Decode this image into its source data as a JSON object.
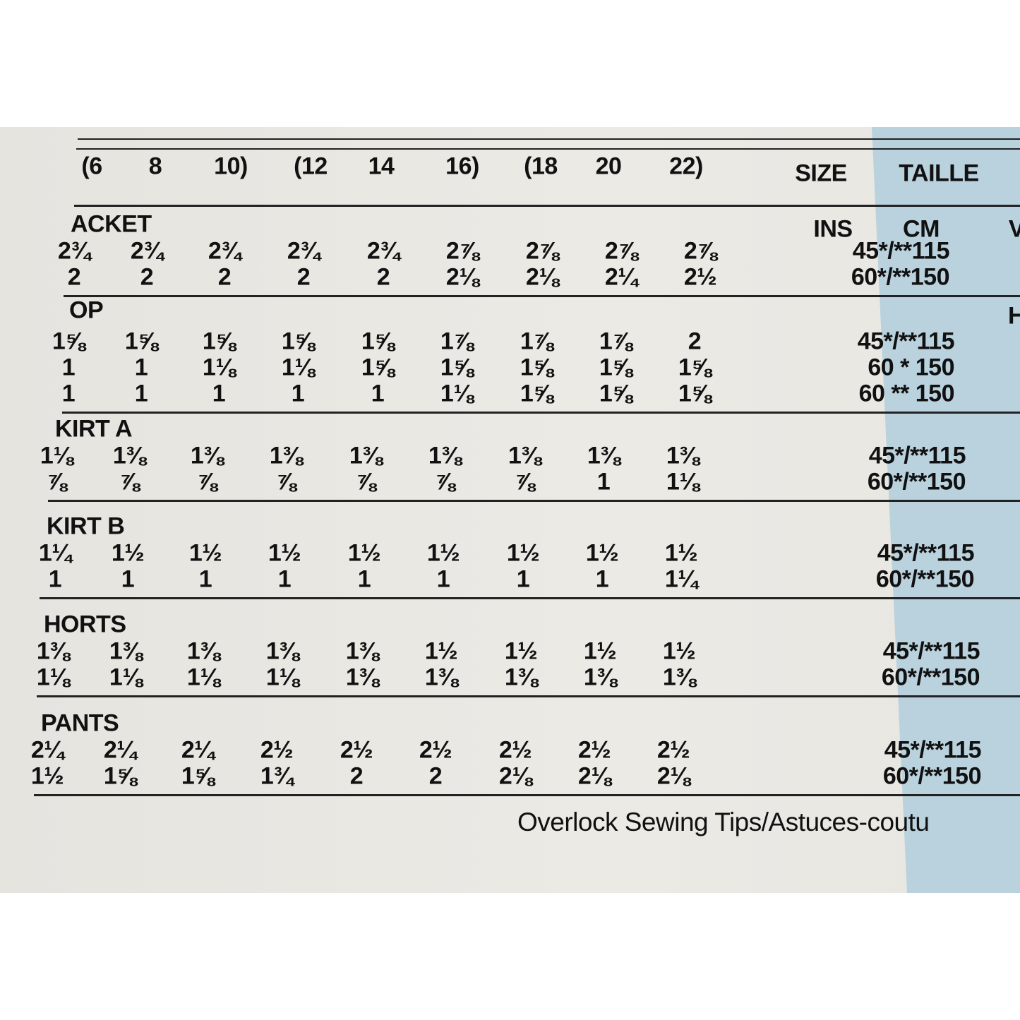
{
  "header": {
    "sizes": [
      "(6",
      "8",
      "10)",
      "(12",
      "14",
      "16)",
      "(18",
      "20",
      "22)"
    ],
    "size_label": "SIZE",
    "taille_label": "TAILLE"
  },
  "unit_labels": [
    "INS",
    "CM"
  ],
  "edge_labels": [
    "V",
    "H"
  ],
  "sections": [
    {
      "title": "ACKET",
      "rows": [
        {
          "values": [
            "2¾",
            "2¾",
            "2¾",
            "2¾",
            "2¾",
            "2⅞",
            "2⅞",
            "2⅞",
            "2⅞"
          ],
          "width": "45*/**115"
        },
        {
          "values": [
            "2",
            "2",
            "2",
            "2",
            "2",
            "2⅛",
            "2⅛",
            "2¼",
            "2½"
          ],
          "width": "60*/**150"
        }
      ]
    },
    {
      "title": "OP",
      "rows": [
        {
          "values": [
            "1⅝",
            "1⅝",
            "1⅝",
            "1⅝",
            "1⅝",
            "1⅞",
            "1⅞",
            "1⅞",
            "2"
          ],
          "width": "45*/**115"
        },
        {
          "values": [
            "1",
            "1",
            "1⅛",
            "1⅛",
            "1⅝",
            "1⅝",
            "1⅝",
            "1⅝",
            "1⅝"
          ],
          "width": "60 * 150"
        },
        {
          "values": [
            "1",
            "1",
            "1",
            "1",
            "1",
            "1⅛",
            "1⅝",
            "1⅝",
            "1⅝"
          ],
          "width": "60 ** 150"
        }
      ]
    },
    {
      "title": "KIRT A",
      "rows": [
        {
          "values": [
            "1⅛",
            "1⅜",
            "1⅜",
            "1⅜",
            "1⅜",
            "1⅜",
            "1⅜",
            "1⅜",
            "1⅜"
          ],
          "width": "45*/**115"
        },
        {
          "values": [
            "⅞",
            "⅞",
            "⅞",
            "⅞",
            "⅞",
            "⅞",
            "⅞",
            "1",
            "1⅛"
          ],
          "width": "60*/**150"
        }
      ]
    },
    {
      "title": "KIRT B",
      "rows": [
        {
          "values": [
            "1¼",
            "1½",
            "1½",
            "1½",
            "1½",
            "1½",
            "1½",
            "1½",
            "1½"
          ],
          "width": "45*/**115"
        },
        {
          "values": [
            "1",
            "1",
            "1",
            "1",
            "1",
            "1",
            "1",
            "1",
            "1¼"
          ],
          "width": "60*/**150"
        }
      ]
    },
    {
      "title": "HORTS",
      "rows": [
        {
          "values": [
            "1⅜",
            "1⅜",
            "1⅜",
            "1⅜",
            "1⅜",
            "1½",
            "1½",
            "1½",
            "1½"
          ],
          "width": "45*/**115"
        },
        {
          "values": [
            "1⅛",
            "1⅛",
            "1⅛",
            "1⅛",
            "1⅜",
            "1⅜",
            "1⅜",
            "1⅜",
            "1⅜"
          ],
          "width": "60*/**150"
        }
      ]
    },
    {
      "title": "PANTS",
      "rows": [
        {
          "values": [
            "2¼",
            "2¼",
            "2¼",
            "2½",
            "2½",
            "2½",
            "2½",
            "2½",
            "2½"
          ],
          "width": "45*/**115"
        },
        {
          "values": [
            "1½",
            "1⅝",
            "1⅝",
            "1¾",
            "2",
            "2",
            "2⅛",
            "2⅛",
            "2⅛"
          ],
          "width": "60*/**150"
        }
      ]
    }
  ],
  "footer": "Overlock Sewing Tips/Astuces-coutu"
}
